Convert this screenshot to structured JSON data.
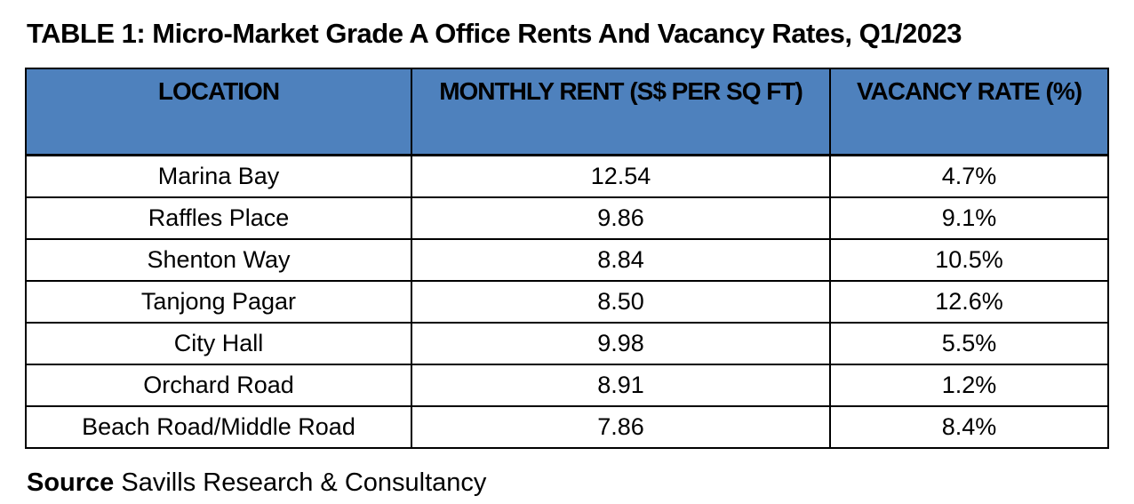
{
  "title": "TABLE 1: Micro-Market Grade A Office Rents And Vacancy Rates, Q1/2023",
  "table": {
    "columns": [
      "LOCATION",
      "MONTHLY RENT (S$ PER SQ FT)",
      "VACANCY RATE (%)"
    ],
    "rows": [
      {
        "location": "Marina Bay",
        "rent": "12.54",
        "vacancy": "4.7%"
      },
      {
        "location": "Raffles Place",
        "rent": "9.86",
        "vacancy": "9.1%"
      },
      {
        "location": "Shenton Way",
        "rent": "8.84",
        "vacancy": "10.5%"
      },
      {
        "location": "Tanjong Pagar",
        "rent": "8.50",
        "vacancy": "12.6%"
      },
      {
        "location": "City Hall",
        "rent": "9.98",
        "vacancy": "5.5%"
      },
      {
        "location": "Orchard Road",
        "rent": "8.91",
        "vacancy": "1.2%"
      },
      {
        "location": "Beach Road/Middle Road",
        "rent": "7.86",
        "vacancy": "8.4%"
      }
    ]
  },
  "source": {
    "label": "Source",
    "text": "Savills Research & Consultancy"
  },
  "colors": {
    "header_bg": "#4E81BD",
    "border": "#000000",
    "text": "#000000",
    "background": "#FFFFFF"
  },
  "chart_data": {
    "type": "table",
    "title": "TABLE 1: Micro-Market Grade A Office Rents And Vacancy Rates, Q1/2023",
    "columns": [
      "LOCATION",
      "MONTHLY RENT (S$ PER SQ FT)",
      "VACANCY RATE (%)"
    ],
    "categories": [
      "Marina Bay",
      "Raffles Place",
      "Shenton Way",
      "Tanjong Pagar",
      "City Hall",
      "Orchard Road",
      "Beach Road/Middle Road"
    ],
    "series": [
      {
        "name": "Monthly Rent (S$ per sq ft)",
        "values": [
          12.54,
          9.86,
          8.84,
          8.5,
          9.98,
          8.91,
          7.86
        ]
      },
      {
        "name": "Vacancy Rate (%)",
        "values": [
          4.7,
          9.1,
          10.5,
          12.6,
          5.5,
          1.2,
          8.4
        ]
      }
    ],
    "source": "Savills Research & Consultancy"
  }
}
